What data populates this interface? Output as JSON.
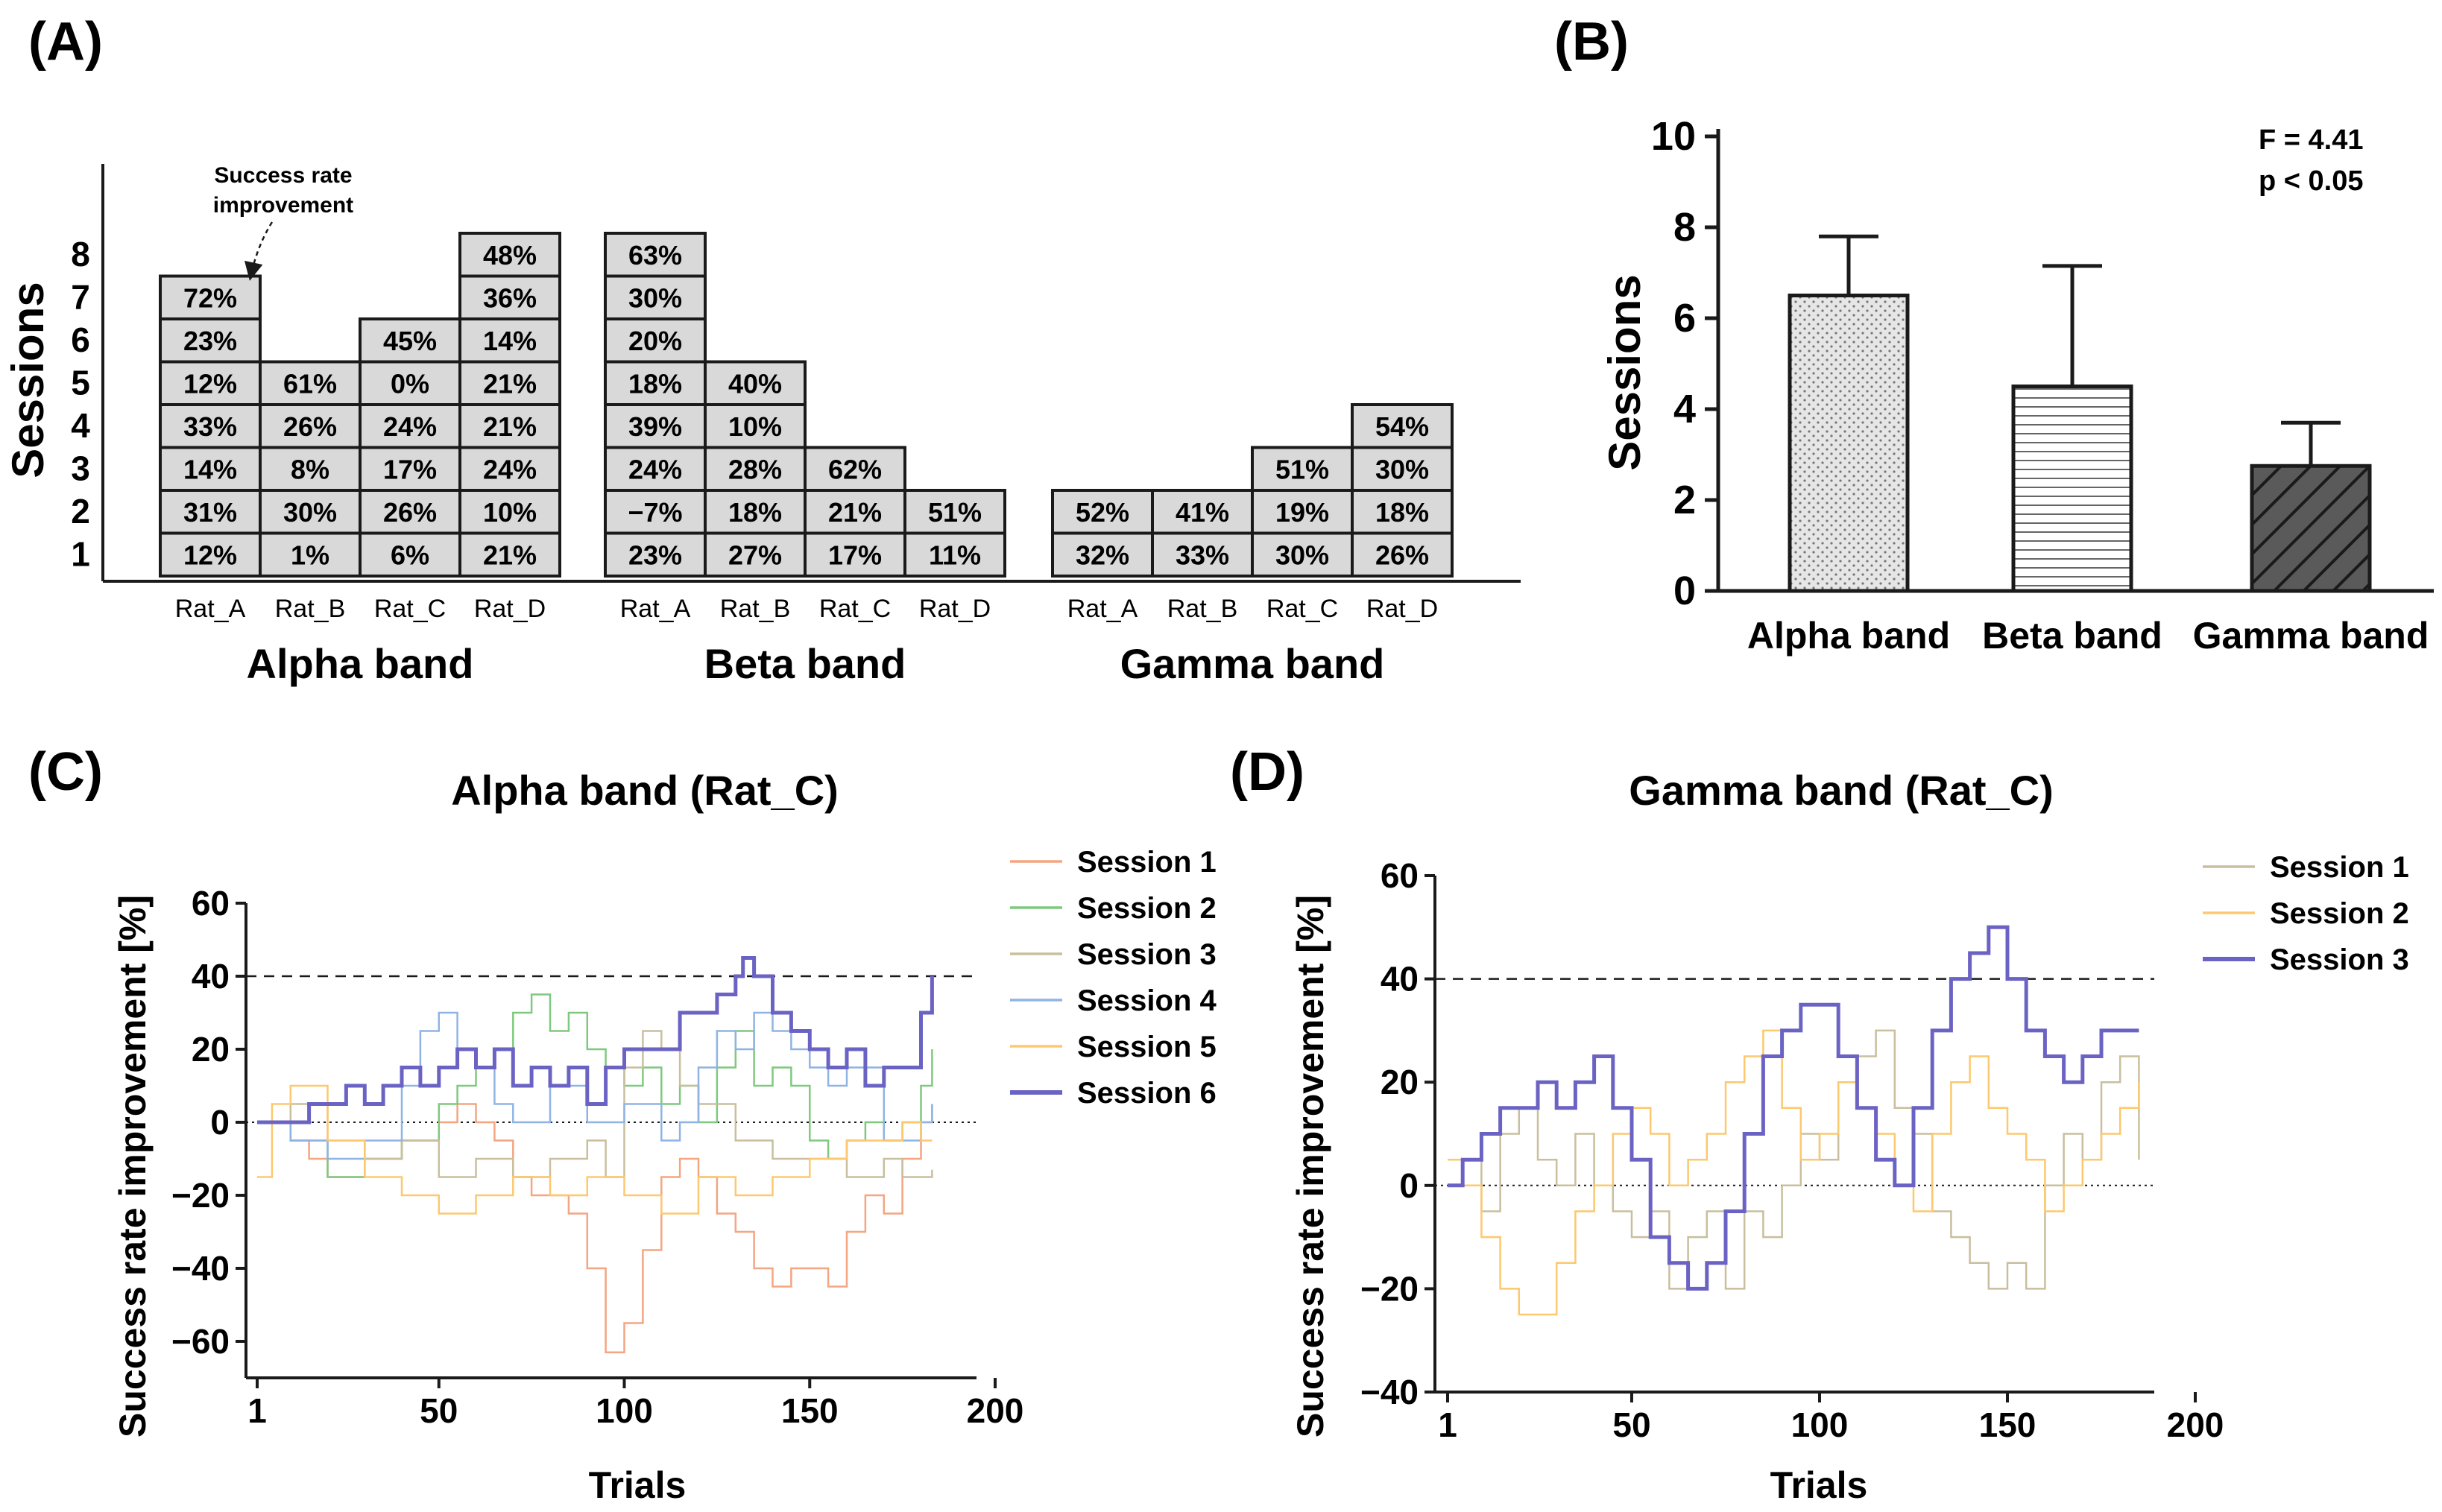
{
  "panels": {
    "A": {
      "label": "(A)",
      "ylabel": "Sessions",
      "yticks": [
        "1",
        "2",
        "3",
        "4",
        "5",
        "6",
        "7",
        "8"
      ],
      "annotation": [
        "Success rate",
        "improvement"
      ],
      "groups": [
        {
          "band": "Alpha band",
          "rats": [
            {
              "name": "Rat_A",
              "cells": [
                "12%",
                "31%",
                "14%",
                "33%",
                "12%",
                "23%",
                "72%"
              ]
            },
            {
              "name": "Rat_B",
              "cells": [
                "1%",
                "30%",
                "8%",
                "26%",
                "61%"
              ]
            },
            {
              "name": "Rat_C",
              "cells": [
                "6%",
                "26%",
                "17%",
                "24%",
                "0%",
                "45%"
              ]
            },
            {
              "name": "Rat_D",
              "cells": [
                "21%",
                "10%",
                "24%",
                "21%",
                "21%",
                "14%",
                "36%",
                "48%"
              ]
            }
          ]
        },
        {
          "band": "Beta band",
          "rats": [
            {
              "name": "Rat_A",
              "cells": [
                "23%",
                "−7%",
                "24%",
                "39%",
                "18%",
                "20%",
                "30%",
                "63%"
              ]
            },
            {
              "name": "Rat_B",
              "cells": [
                "27%",
                "18%",
                "28%",
                "10%",
                "40%"
              ]
            },
            {
              "name": "Rat_C",
              "cells": [
                "17%",
                "21%",
                "62%"
              ]
            },
            {
              "name": "Rat_D",
              "cells": [
                "11%",
                "51%"
              ]
            }
          ]
        },
        {
          "band": "Gamma band",
          "rats": [
            {
              "name": "Rat_A",
              "cells": [
                "32%",
                "52%"
              ]
            },
            {
              "name": "Rat_B",
              "cells": [
                "33%",
                "41%"
              ]
            },
            {
              "name": "Rat_C",
              "cells": [
                "30%",
                "19%",
                "51%"
              ]
            },
            {
              "name": "Rat_D",
              "cells": [
                "26%",
                "18%",
                "30%",
                "54%"
              ]
            }
          ]
        }
      ]
    },
    "B": {
      "label": "(B)",
      "ylabel": "Sessions",
      "stats": [
        "F = 4.41",
        "p < 0.05"
      ]
    },
    "C": {
      "label": "(C)",
      "title": "Alpha band (Rat_C)",
      "ylabel": "Success rate improvement [%]",
      "xlabel": "Trials",
      "xticks": [
        "1",
        "50",
        "100",
        "150",
        "200"
      ],
      "yticks": [
        "60",
        "40",
        "20",
        "0",
        "−20",
        "−40",
        "−60"
      ]
    },
    "D": {
      "label": "(D)",
      "title": "Gamma band (Rat_C)",
      "ylabel": "Success rate improvement [%]",
      "xlabel": "Trials",
      "xticks": [
        "1",
        "50",
        "100",
        "150",
        "200"
      ],
      "yticks": [
        "60",
        "40",
        "20",
        "0",
        "−20",
        "−40"
      ]
    }
  },
  "chart_data": [
    {
      "panel": "A",
      "type": "table",
      "ylabel": "Sessions",
      "ylim": [
        0,
        8
      ],
      "note": "Each stacked cell = success rate improvement for one session (session 1 at bottom)"
    },
    {
      "panel": "B",
      "type": "bar",
      "categories": [
        "Alpha band",
        "Beta band",
        "Gamma band"
      ],
      "values": [
        6.5,
        4.5,
        2.75
      ],
      "error_upper": [
        7.8,
        7.15,
        3.7
      ],
      "patterns": [
        "dotted",
        "horizontal-lines",
        "diagonal-hatch"
      ],
      "fills": [
        "#e8e8e8",
        "#ffffff",
        "#5a5a5a"
      ],
      "ylabel": "Sessions",
      "ylim": [
        0,
        10
      ],
      "yticks": [
        0,
        2,
        4,
        6,
        8,
        10
      ],
      "annotation": [
        "F = 4.41",
        "p < 0.05"
      ]
    },
    {
      "panel": "C",
      "type": "line",
      "title": "Alpha band (Rat_C)",
      "xlabel": "Trials",
      "ylabel": "Success rate improvement [%]",
      "xlim": [
        1,
        200
      ],
      "ylim": [
        -70,
        60
      ],
      "xticks": [
        1,
        50,
        100,
        150,
        200
      ],
      "yticks": [
        -60,
        -40,
        -20,
        0,
        20,
        40,
        60
      ],
      "reference_lines": [
        {
          "y": 40,
          "style": "dashed"
        },
        {
          "y": 0,
          "style": "dotted"
        }
      ],
      "legend_position": "right",
      "series": [
        {
          "name": "Session 1",
          "color": "#f4a582",
          "width": 2.5,
          "x": [
            1,
            10,
            15,
            20,
            30,
            40,
            50,
            55,
            60,
            65,
            70,
            75,
            80,
            85,
            90,
            95,
            100,
            105,
            110,
            115,
            120,
            125,
            130,
            135,
            140,
            145,
            150,
            155,
            160,
            165,
            170,
            175,
            180,
            183
          ],
          "y": [
            0,
            -5,
            -10,
            -15,
            -10,
            -5,
            0,
            5,
            0,
            -5,
            -15,
            -20,
            -20,
            -25,
            -40,
            -63,
            -55,
            -35,
            -15,
            -10,
            -15,
            -25,
            -30,
            -40,
            -45,
            -40,
            -40,
            -45,
            -30,
            -20,
            -25,
            -10,
            0,
            5
          ]
        },
        {
          "name": "Session 2",
          "color": "#7fc97f",
          "width": 2.5,
          "x": [
            1,
            10,
            20,
            30,
            40,
            50,
            55,
            60,
            65,
            70,
            75,
            80,
            85,
            90,
            95,
            100,
            105,
            110,
            115,
            120,
            125,
            130,
            135,
            140,
            145,
            150,
            155,
            160,
            165,
            170,
            175,
            180,
            183
          ],
          "y": [
            0,
            -5,
            -15,
            -10,
            -5,
            5,
            10,
            15,
            20,
            30,
            35,
            25,
            30,
            20,
            15,
            10,
            15,
            5,
            10,
            0,
            15,
            25,
            10,
            15,
            10,
            -5,
            -10,
            -5,
            0,
            -5,
            0,
            10,
            20
          ]
        },
        {
          "name": "Session 3",
          "color": "#c9bf9e",
          "width": 2.5,
          "x": [
            1,
            10,
            20,
            30,
            40,
            50,
            60,
            70,
            80,
            90,
            95,
            100,
            105,
            110,
            115,
            120,
            130,
            140,
            150,
            160,
            170,
            175,
            180,
            183
          ],
          "y": [
            0,
            5,
            -5,
            -10,
            -5,
            -15,
            -10,
            -15,
            -10,
            -5,
            -15,
            15,
            25,
            20,
            10,
            5,
            -5,
            -10,
            -10,
            -15,
            -10,
            -15,
            -15,
            -13
          ]
        },
        {
          "name": "Session 4",
          "color": "#8fb4e3",
          "width": 2.5,
          "x": [
            1,
            10,
            20,
            30,
            40,
            45,
            50,
            55,
            60,
            65,
            70,
            80,
            90,
            100,
            110,
            115,
            120,
            125,
            130,
            135,
            140,
            145,
            150,
            155,
            160,
            170,
            180,
            183
          ],
          "y": [
            0,
            -5,
            -10,
            -5,
            10,
            25,
            30,
            20,
            15,
            5,
            0,
            10,
            0,
            5,
            -5,
            0,
            15,
            25,
            20,
            30,
            25,
            20,
            15,
            10,
            15,
            -5,
            0,
            5
          ]
        },
        {
          "name": "Session 5",
          "color": "#fdc86e",
          "width": 2.5,
          "x": [
            1,
            5,
            10,
            20,
            30,
            40,
            50,
            60,
            70,
            80,
            90,
            100,
            110,
            120,
            130,
            140,
            150,
            160,
            170,
            175,
            180,
            183
          ],
          "y": [
            -15,
            5,
            10,
            -5,
            -15,
            -20,
            -25,
            -20,
            -15,
            -20,
            -15,
            -20,
            -25,
            -15,
            -20,
            -15,
            -10,
            -5,
            -5,
            0,
            -5,
            -5
          ]
        },
        {
          "name": "Session 6",
          "color": "#6b63c4",
          "width": 5,
          "x": [
            1,
            10,
            15,
            20,
            25,
            30,
            35,
            40,
            45,
            50,
            55,
            60,
            65,
            70,
            75,
            80,
            85,
            90,
            95,
            100,
            110,
            115,
            120,
            125,
            130,
            132,
            135,
            140,
            145,
            150,
            155,
            160,
            165,
            170,
            175,
            180,
            183
          ],
          "y": [
            0,
            0,
            5,
            5,
            10,
            5,
            10,
            15,
            10,
            15,
            20,
            15,
            20,
            10,
            15,
            10,
            15,
            5,
            15,
            20,
            20,
            30,
            30,
            35,
            40,
            45,
            40,
            30,
            25,
            20,
            15,
            20,
            10,
            15,
            15,
            30,
            40
          ]
        }
      ]
    },
    {
      "panel": "D",
      "type": "line",
      "title": "Gamma band (Rat_C)",
      "xlabel": "Trials",
      "ylabel": "Success rate improvement [%]",
      "xlim": [
        1,
        200
      ],
      "ylim": [
        -40,
        60
      ],
      "xticks": [
        1,
        50,
        100,
        150,
        200
      ],
      "yticks": [
        -40,
        -20,
        0,
        20,
        40,
        60
      ],
      "reference_lines": [
        {
          "y": 40,
          "style": "dashed"
        },
        {
          "y": 0,
          "style": "dotted"
        }
      ],
      "legend_position": "top-right",
      "series": [
        {
          "name": "Session 1",
          "color": "#c9bf9e",
          "width": 2.5,
          "x": [
            1,
            5,
            10,
            15,
            20,
            25,
            30,
            35,
            40,
            45,
            50,
            55,
            60,
            65,
            70,
            75,
            80,
            85,
            90,
            95,
            100,
            105,
            110,
            115,
            120,
            125,
            130,
            135,
            140,
            145,
            150,
            155,
            160,
            165,
            170,
            175,
            180,
            185
          ],
          "y": [
            0,
            5,
            -5,
            10,
            15,
            5,
            0,
            10,
            0,
            -5,
            -10,
            -5,
            -20,
            -10,
            -5,
            -20,
            -5,
            -10,
            0,
            10,
            5,
            20,
            25,
            30,
            15,
            10,
            -5,
            -10,
            -15,
            -20,
            -15,
            -20,
            0,
            10,
            5,
            20,
            25,
            5
          ]
        },
        {
          "name": "Session 2",
          "color": "#fdc86e",
          "width": 2.5,
          "x": [
            1,
            5,
            10,
            15,
            20,
            25,
            30,
            35,
            40,
            45,
            50,
            55,
            60,
            65,
            70,
            75,
            80,
            85,
            90,
            95,
            100,
            105,
            110,
            115,
            120,
            125,
            130,
            135,
            140,
            145,
            150,
            155,
            160,
            165,
            170,
            175,
            180,
            185
          ],
          "y": [
            5,
            0,
            -10,
            -20,
            -25,
            -25,
            -15,
            -5,
            0,
            10,
            15,
            10,
            0,
            5,
            10,
            20,
            25,
            30,
            15,
            5,
            10,
            20,
            15,
            10,
            0,
            -5,
            10,
            20,
            25,
            15,
            10,
            5,
            -5,
            0,
            5,
            10,
            15,
            20
          ]
        },
        {
          "name": "Session 3",
          "color": "#6b63c4",
          "width": 5,
          "x": [
            1,
            5,
            10,
            15,
            20,
            25,
            30,
            35,
            40,
            45,
            50,
            55,
            60,
            65,
            70,
            75,
            80,
            85,
            90,
            95,
            100,
            105,
            110,
            115,
            120,
            125,
            130,
            135,
            140,
            145,
            150,
            155,
            160,
            165,
            170,
            175,
            180,
            185
          ],
          "y": [
            0,
            5,
            10,
            15,
            15,
            20,
            15,
            20,
            25,
            15,
            5,
            -10,
            -15,
            -20,
            -15,
            -5,
            10,
            25,
            30,
            35,
            35,
            25,
            15,
            5,
            0,
            15,
            30,
            40,
            45,
            50,
            40,
            30,
            25,
            20,
            25,
            30,
            30,
            30
          ]
        }
      ]
    }
  ]
}
